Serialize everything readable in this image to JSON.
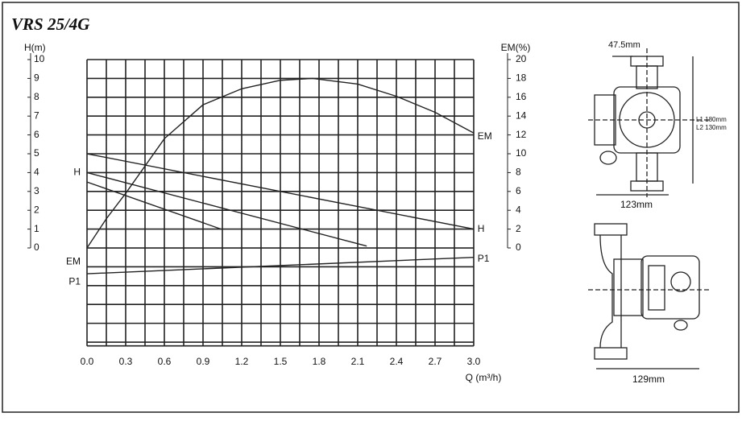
{
  "chart_data": {
    "type": "line",
    "title": "VRS 25/4G",
    "ylabel": "H(m)",
    "y2label": "EM(%)",
    "xlabel": "Q (m³/h)",
    "xlim": [
      0,
      3.0
    ],
    "ylim": [
      -5.2,
      10
    ],
    "y2lim": [
      -10.4,
      20
    ],
    "xticks": [
      {
        "value": 0,
        "label": "0.0"
      },
      0.3,
      0.6,
      0.9,
      1.2,
      1.5,
      1.8,
      2.1,
      2.4,
      2.7,
      {
        "value": 3,
        "label": "3.0"
      }
    ],
    "yticks": [
      0,
      1,
      2,
      3,
      4,
      5,
      6,
      7,
      8,
      9,
      10
    ],
    "y2ticks": [
      0,
      2,
      4,
      6,
      8,
      10,
      12,
      14,
      16,
      18,
      20
    ],
    "grid": true,
    "series": [
      {
        "color": "#222",
        "x": [
          0,
          3.0
        ],
        "values": [
          5,
          1
        ]
      },
      {
        "color": "#222",
        "x": [
          0,
          2.17
        ],
        "values": [
          4,
          0.1
        ]
      },
      {
        "color": "#222",
        "x": [
          0,
          1.04
        ],
        "values": [
          3.5,
          1.0
        ]
      },
      {
        "color": "#222",
        "axis": "y2",
        "x": [
          0,
          0.15,
          0.3,
          0.6,
          0.9,
          1.2,
          1.5,
          1.75,
          2.1,
          2.4,
          2.7,
          3.0
        ],
        "values": [
          0,
          3.1,
          5.8,
          11.6,
          15.2,
          16.9,
          17.8,
          18.0,
          17.4,
          16.1,
          14.4,
          12.2
        ]
      },
      {
        "color": "#222",
        "x": [
          0,
          3.0
        ],
        "values": [
          -1.37,
          -0.5
        ]
      }
    ],
    "annotations": [
      {
        "text": "H",
        "x": -0.05,
        "y": 4
      },
      {
        "text": "H",
        "x": 3.03,
        "y": 1
      },
      {
        "text": "EM",
        "x": 3.03,
        "y": 5.9
      },
      {
        "text": "EM",
        "x": -0.05,
        "y": -0.75
      },
      {
        "text": "P1",
        "x": -0.05,
        "y": -1.8
      },
      {
        "text": "P1",
        "x": 3.03,
        "y": -0.6
      }
    ]
  },
  "drawing": {
    "flange_offset": "47.5mm",
    "length_1": "L1 180mm",
    "length_2": "L2 130mm",
    "width_front": "123mm",
    "width_side": "129mm"
  }
}
